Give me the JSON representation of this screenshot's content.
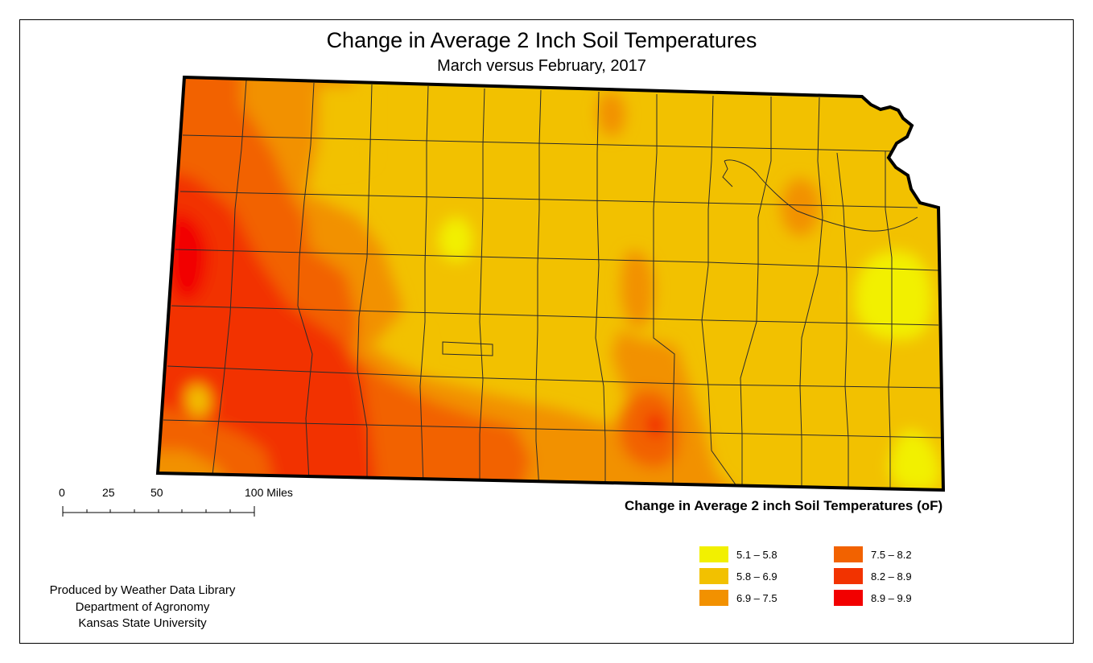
{
  "title": "Change in Average 2 Inch Soil Temperatures",
  "subtitle": "March versus February, 2017",
  "map": {
    "region_icon": "kansas-state-outline",
    "colors": {
      "outline": "#000000",
      "county_lines": "#2b2b2b"
    }
  },
  "scale_bar": {
    "labels": [
      "0",
      "25",
      "50",
      "100 Miles"
    ]
  },
  "legend": {
    "title": "Change in Average 2 inch Soil Temperatures (oF)",
    "classes": [
      {
        "label": "5.1 – 5.8",
        "color": "#f2f000"
      },
      {
        "label": "5.8 – 6.9",
        "color": "#f2c100"
      },
      {
        "label": "6.9 – 7.5",
        "color": "#f29100"
      },
      {
        "label": "7.5 – 8.2",
        "color": "#f26200"
      },
      {
        "label": "8.2 – 8.9",
        "color": "#f23300"
      },
      {
        "label": "8.9 – 9.9",
        "color": "#f20000"
      }
    ]
  },
  "credits": {
    "line1": "Produced by Weather Data Library",
    "line2": "Department of Agronomy",
    "line3": "Kansas State University"
  }
}
